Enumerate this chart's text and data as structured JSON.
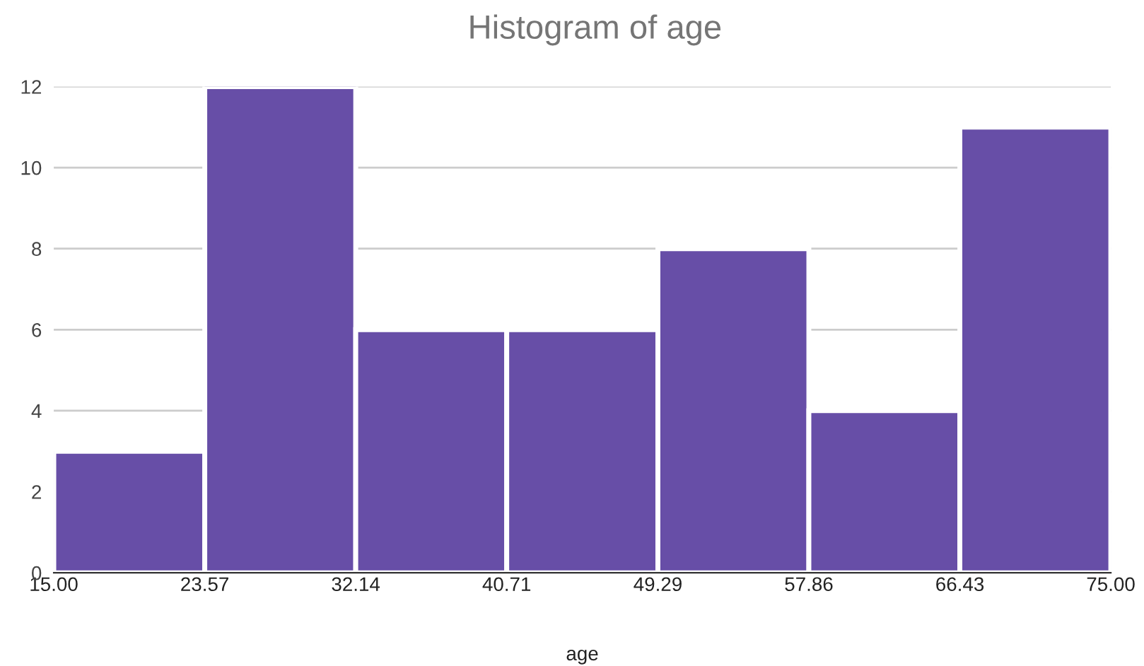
{
  "chart_data": {
    "type": "histogram",
    "title": "Histogram of age",
    "xlabel": "age",
    "bins": [
      15.0,
      23.57,
      32.14,
      40.71,
      49.29,
      57.86,
      66.43,
      75.0
    ],
    "values": [
      3,
      12,
      6,
      6,
      8,
      4,
      11
    ],
    "color": "#674ea7",
    "xlim": [
      15,
      75
    ],
    "xticks": [
      {
        "value": 15.0,
        "label": "15.00"
      },
      {
        "value": 23.57,
        "label": "23.57"
      },
      {
        "value": 32.14,
        "label": "32.14"
      },
      {
        "value": 40.71,
        "label": "40.71"
      },
      {
        "value": 49.29,
        "label": "49.29"
      },
      {
        "value": 57.86,
        "label": "57.86"
      },
      {
        "value": 66.43,
        "label": "66.43"
      },
      {
        "value": 75.0,
        "label": "75.00"
      }
    ],
    "ylim": [
      0,
      12
    ],
    "yticks": [
      0,
      2,
      4,
      6,
      8,
      10,
      12
    ],
    "grid": "y"
  }
}
